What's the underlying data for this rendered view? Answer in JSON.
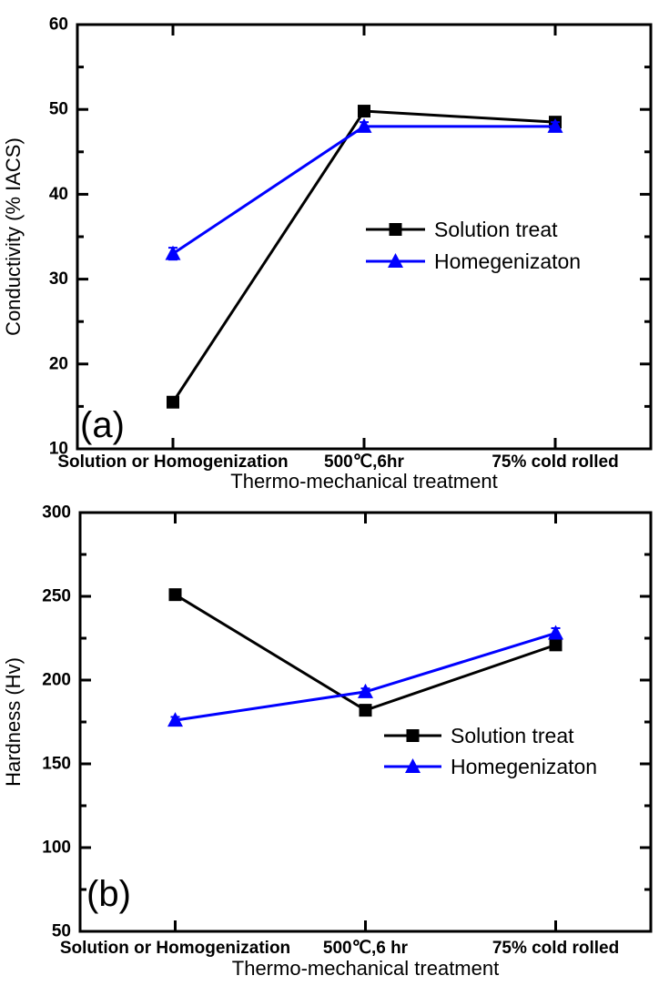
{
  "page": {
    "background": "#ffffff"
  },
  "chart_data": [
    {
      "type": "line",
      "panel_label": "(a)",
      "xlabel": "Thermo-mechanical treatment",
      "ylabel": "Conductivity (% IACS)",
      "categories": [
        "Solution or Homogenization",
        "500℃,6hr",
        "75% cold rolled"
      ],
      "ylim": [
        10,
        60
      ],
      "ytick_step": 10,
      "yminor_step": 5,
      "yticks": [
        10,
        20,
        30,
        40,
        50,
        60
      ],
      "grid": false,
      "legend_position": "center-right",
      "series": [
        {
          "name": "Solution treat",
          "color": "#000000",
          "marker": "square",
          "values": [
            15.5,
            49.8,
            48.5
          ],
          "errors": [
            0,
            0.6,
            0.5
          ]
        },
        {
          "name": "Homegenizaton",
          "color": "#0000ff",
          "marker": "triangle",
          "values": [
            33,
            48,
            48
          ],
          "errors": [
            0.7,
            0.5,
            0.5
          ]
        }
      ]
    },
    {
      "type": "line",
      "panel_label": "(b)",
      "xlabel": "Thermo-mechanical treatment",
      "ylabel": "Hardness (Hv)",
      "categories": [
        "Solution or Homogenization",
        "500℃,6 hr",
        "75% cold rolled"
      ],
      "ylim": [
        50,
        300
      ],
      "ytick_step": 50,
      "yminor_step": 25,
      "yticks": [
        50,
        100,
        150,
        200,
        250,
        300
      ],
      "grid": false,
      "legend_position": "center-right",
      "series": [
        {
          "name": "Solution treat",
          "color": "#000000",
          "marker": "square",
          "values": [
            251,
            182,
            221
          ],
          "errors": [
            3,
            1,
            2
          ]
        },
        {
          "name": "Homegenizaton",
          "color": "#0000ff",
          "marker": "triangle",
          "values": [
            176,
            193,
            228
          ],
          "errors": [
            2,
            2,
            3
          ]
        }
      ]
    }
  ]
}
